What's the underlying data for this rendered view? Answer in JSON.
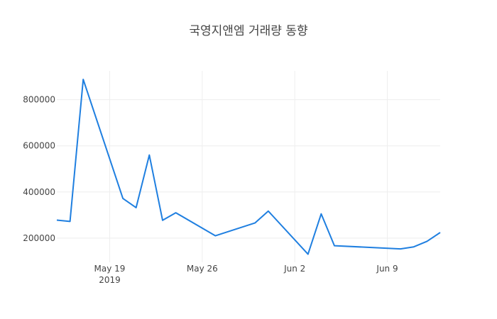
{
  "chart_data": {
    "type": "line",
    "title": "국영지앤엠 거래량 동향",
    "xlabel": "",
    "ylabel": "",
    "line_color": "#1f7fe0",
    "grid": true,
    "x_ticks": [
      {
        "date": "2019-05-19",
        "label": "May 19",
        "sublabel": "2019"
      },
      {
        "date": "2019-05-26",
        "label": "May 26",
        "sublabel": ""
      },
      {
        "date": "2019-06-02",
        "label": "Jun 2",
        "sublabel": ""
      },
      {
        "date": "2019-06-09",
        "label": "Jun 9",
        "sublabel": ""
      }
    ],
    "y_ticks": [
      200000,
      400000,
      600000,
      800000
    ],
    "xlim": [
      "2019-05-15",
      "2019-06-13"
    ],
    "ylim": [
      95000,
      925000
    ],
    "x": [
      "2019-05-15",
      "2019-05-16",
      "2019-05-17",
      "2019-05-20",
      "2019-05-21",
      "2019-05-22",
      "2019-05-23",
      "2019-05-24",
      "2019-05-27",
      "2019-05-30",
      "2019-05-31",
      "2019-06-03",
      "2019-06-04",
      "2019-06-05",
      "2019-06-10",
      "2019-06-11",
      "2019-06-12",
      "2019-06-13"
    ],
    "y": [
      278000,
      272000,
      888000,
      372000,
      332000,
      560000,
      277000,
      310000,
      210000,
      266000,
      317000,
      130000,
      305000,
      167000,
      153000,
      162000,
      186000,
      224000
    ]
  }
}
